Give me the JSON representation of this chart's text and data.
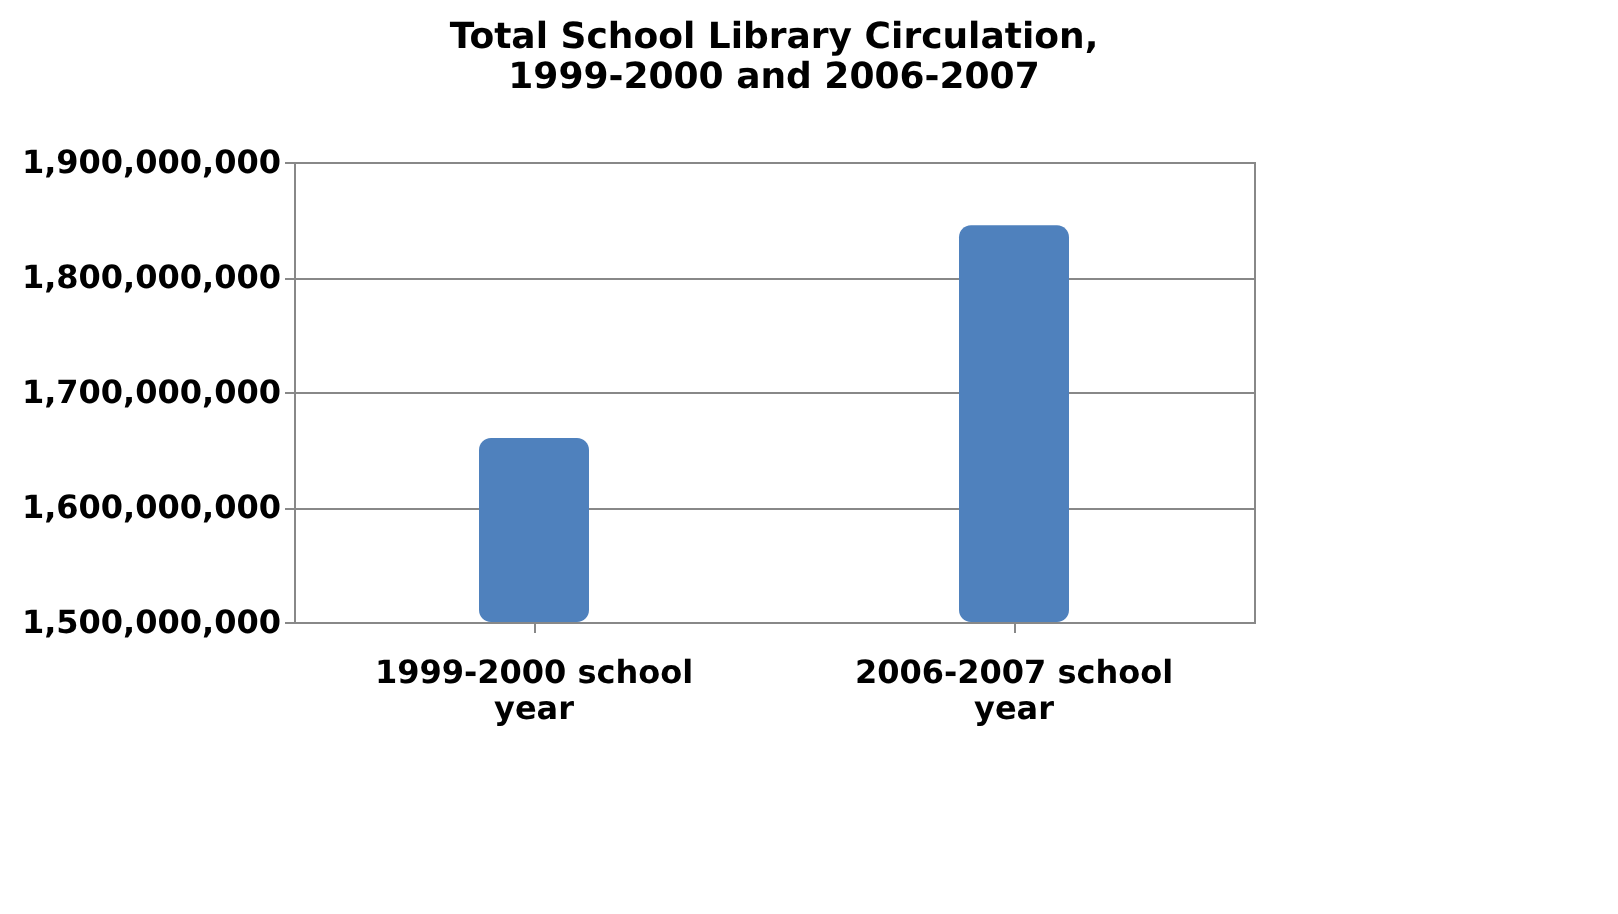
{
  "chart_data": {
    "type": "bar",
    "title": [
      "Total School Library Circulation,",
      "1999-2000 and 2006-2007"
    ],
    "categories": [
      "1999-2000 school year",
      "2006-2007 school year"
    ],
    "values": [
      1660000000,
      1845000000
    ],
    "color": "#4f81bd",
    "ylim": [
      1500000000,
      1900000000
    ],
    "yticks": [
      {
        "value": 1500000000,
        "label": "1,500,000,000"
      },
      {
        "value": 1600000000,
        "label": "1,600,000,000"
      },
      {
        "value": 1700000000,
        "label": "1,700,000,000"
      },
      {
        "value": 1800000000,
        "label": "1,800,000,000"
      },
      {
        "value": 1900000000,
        "label": "1,900,000,000"
      }
    ],
    "grid": "y"
  }
}
